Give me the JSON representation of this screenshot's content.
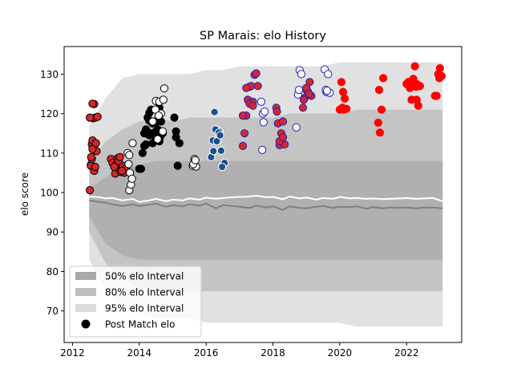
{
  "chart_data": {
    "type": "scatter",
    "title": "SP Marais: elo History",
    "xlabel": "",
    "ylabel": "elo score",
    "xlim": [
      2011.75,
      2023.65
    ],
    "ylim": [
      62,
      137
    ],
    "xticks": [
      {
        "value": 2012,
        "label": "2012"
      },
      {
        "value": 2014,
        "label": "2014"
      },
      {
        "value": 2016,
        "label": "2016"
      },
      {
        "value": 2018,
        "label": "2018"
      },
      {
        "value": 2020,
        "label": "2020"
      },
      {
        "value": 2022,
        "label": "2022"
      }
    ],
    "yticks": [
      {
        "value": 70,
        "label": "70"
      },
      {
        "value": 80,
        "label": "80"
      },
      {
        "value": 90,
        "label": "90"
      },
      {
        "value": 100,
        "label": "100"
      },
      {
        "value": 110,
        "label": "110"
      },
      {
        "value": 120,
        "label": "120"
      },
      {
        "value": 130,
        "label": "130"
      }
    ],
    "grid": false,
    "legend_position": "lower-left",
    "legend": [
      {
        "label": "50% elo Interval",
        "kind": "band",
        "color": "#a9a9a9"
      },
      {
        "label": "80% elo Interval",
        "kind": "band",
        "color": "#bebebe"
      },
      {
        "label": "95% elo Interval",
        "kind": "band",
        "color": "#dcdcdc"
      },
      {
        "label": "Post Match elo",
        "kind": "marker",
        "color": "#000000"
      }
    ],
    "bands": {
      "x": [
        2012.5,
        2013.0,
        2013.5,
        2014.0,
        2014.5,
        2015.0,
        2015.5,
        2016.0,
        2016.5,
        2017.0,
        2017.5,
        2018.0,
        2018.5,
        2019.0,
        2019.5,
        2020.0,
        2020.5,
        2021.0,
        2021.5,
        2022.0,
        2022.5,
        2023.08
      ],
      "p95_upper": [
        117,
        124,
        129,
        130,
        130,
        130,
        130,
        131,
        131,
        132,
        132,
        132,
        132,
        132,
        132,
        133,
        133,
        133,
        133,
        133,
        133,
        133
      ],
      "p80_upper": [
        108,
        113,
        116,
        118,
        119,
        118,
        119,
        119,
        119,
        119,
        119,
        119,
        120,
        120,
        120,
        120,
        121,
        121,
        121,
        121,
        121,
        121
      ],
      "p50_upper": [
        101,
        104,
        106,
        107,
        108,
        108,
        108,
        108,
        108,
        108,
        108,
        108,
        108,
        108,
        108,
        108,
        108,
        108,
        108,
        108,
        108,
        108
      ],
      "median": [
        98,
        97,
        97,
        97,
        97,
        97,
        97,
        97,
        97,
        97,
        97,
        96,
        97,
        97,
        97,
        97,
        97,
        97,
        97,
        97,
        97,
        97
      ],
      "p50_lower": [
        94,
        87,
        84,
        83,
        83,
        83,
        83,
        83,
        83,
        83,
        83,
        83,
        83,
        83,
        83,
        83,
        83,
        83,
        83,
        83,
        83,
        83
      ],
      "p80_lower": [
        90,
        82,
        78,
        76,
        76,
        75,
        75,
        75,
        75,
        75,
        75,
        75,
        75,
        75,
        75,
        75,
        75,
        75,
        75,
        75,
        75,
        75
      ],
      "p95_lower": [
        83,
        75,
        71,
        69,
        68,
        68,
        68,
        67,
        67,
        67,
        67,
        67,
        67,
        67,
        67,
        67,
        66,
        66,
        66,
        66,
        66,
        66
      ]
    },
    "trend": {
      "x": [
        2012.5,
        2012.8,
        2013.0,
        2013.2,
        2013.5,
        2013.8,
        2014.0,
        2014.3,
        2014.5,
        2014.8,
        2015.0,
        2015.3,
        2015.5,
        2015.8,
        2016.0,
        2016.3,
        2016.5,
        2016.8,
        2017.0,
        2017.3,
        2017.5,
        2017.8,
        2018.0,
        2018.3,
        2018.5,
        2018.8,
        2019.0,
        2019.3,
        2019.5,
        2019.8,
        2020.0,
        2020.3,
        2020.5,
        2020.8,
        2021.0,
        2021.3,
        2021.5,
        2021.8,
        2022.0,
        2022.3,
        2022.5,
        2022.8,
        2023.08
      ],
      "white_line": [
        99.0,
        98.8,
        98.5,
        98.6,
        98.0,
        98.4,
        97.6,
        98.0,
        98.4,
        97.8,
        98.2,
        98.0,
        98.5,
        98.2,
        98.7,
        98.4,
        98.6,
        98.8,
        98.9,
        99.0,
        99.2,
        98.8,
        98.9,
        98.3,
        99.0,
        98.5,
        98.7,
        98.2,
        98.6,
        98.4,
        98.9,
        98.5,
        98.6,
        98.4,
        98.5,
        98.3,
        98.4,
        98.5,
        98.6,
        98.4,
        98.5,
        98.6,
        97.8
      ],
      "gray_line": [
        98.0,
        97.6,
        97.4,
        97.0,
        96.6,
        97.0,
        96.6,
        96.9,
        97.2,
        96.4,
        96.8,
        96.5,
        97.0,
        96.7,
        97.2,
        96.0,
        96.8,
        96.6,
        96.4,
        96.1,
        96.7,
        96.2,
        96.5,
        95.6,
        96.5,
        96.1,
        96.0,
        96.4,
        96.6,
        96.1,
        96.4,
        96.3,
        96.5,
        95.9,
        96.3,
        96.0,
        96.2,
        96.1,
        96.2,
        96.0,
        96.2,
        96.2,
        96.0
      ]
    },
    "series": [
      {
        "fill": "#d62728",
        "edge": "#000000",
        "x": [
          2012.52,
          2012.55,
          2012.58,
          2012.6,
          2012.62,
          2012.65,
          2012.68,
          2012.72,
          2012.55,
          2012.6,
          2012.52,
          2012.58,
          2012.7,
          2012.75,
          2012.56,
          2012.65,
          2012.6,
          2012.68,
          2013.15,
          2013.2,
          2013.28,
          2013.35,
          2013.4,
          2013.45,
          2013.5,
          2013.55,
          2013.6,
          2013.3,
          2013.38,
          2013.48,
          2013.42,
          2013.25
        ],
        "y": [
          100.6,
          107.0,
          112.2,
          113.2,
          118.8,
          122.4,
          119.0,
          110.5,
          106.8,
          111.0,
          119.0,
          108.5,
          112.5,
          119.2,
          109.0,
          105.5,
          122.5,
          106.5,
          108.5,
          107.5,
          104.8,
          108.7,
          106.0,
          105.2,
          106.8,
          105.0,
          106.2,
          107.0,
          108.0,
          105.5,
          109.0,
          106.5
        ]
      },
      {
        "fill": "#000000",
        "edge": "#000000",
        "x": [
          2014.05,
          2014.1,
          2014.15,
          2014.2,
          2014.25,
          2014.3,
          2014.35,
          2014.4,
          2014.45,
          2014.5,
          2014.55,
          2014.6,
          2014.65,
          2014.2,
          2014.3,
          2014.4,
          2014.5,
          2014.15,
          2014.25,
          2014.35,
          2014.45,
          2014.55,
          2014.62,
          2014.7,
          2014.0,
          2014.3,
          2014.6,
          2015.05,
          2015.1,
          2015.15,
          2015.2,
          2015.1
        ],
        "y": [
          106.0,
          110.0,
          115.0,
          112.2,
          119.0,
          120.2,
          115.0,
          112.5,
          118.0,
          115.5,
          116.0,
          113.0,
          118.0,
          116.0,
          114.5,
          117.5,
          113.5,
          111.8,
          114.8,
          121.0,
          115.0,
          118.0,
          114.0,
          115.0,
          106.0,
          118.2,
          121.5,
          119.0,
          114.0,
          106.8,
          112.5,
          115.5
        ]
      },
      {
        "fill": "#ffffff",
        "edge": "#000000",
        "x": [
          2013.65,
          2013.7,
          2013.75,
          2013.8,
          2013.68,
          2013.72,
          2013.78,
          2013.7,
          2014.4,
          2014.5,
          2014.6,
          2014.7,
          2014.75,
          2014.65,
          2014.55,
          2014.48,
          2014.72,
          2014.58,
          2015.6,
          2015.65,
          2015.7,
          2015.62,
          2015.68
        ],
        "y": [
          110.0,
          100.6,
          102.0,
          112.5,
          107.2,
          105.0,
          103.5,
          109.5,
          118.0,
          123.2,
          123.0,
          115.5,
          126.4,
          120.0,
          113.5,
          121.0,
          123.5,
          119.5,
          106.8,
          108.5,
          106.6,
          107.2,
          108.2
        ]
      },
      {
        "fill": "#1f4e8c",
        "edge": "#ffffff",
        "x": [
          2016.15,
          2016.2,
          2016.25,
          2016.3,
          2016.35,
          2016.4,
          2016.45,
          2016.5,
          2016.55,
          2016.28,
          2016.38,
          2016.22,
          2016.48,
          2016.32,
          2016.42
        ],
        "y": [
          109.0,
          113.2,
          120.4,
          116.0,
          113.2,
          115.5,
          110.6,
          106.8,
          107.5,
          116.0,
          115.2,
          110.5,
          106.5,
          113.0,
          114.5
        ]
      },
      {
        "fill": "#d62728",
        "edge": "#2020c0",
        "x": [
          2017.1,
          2017.15,
          2017.2,
          2017.25,
          2017.3,
          2017.35,
          2017.4,
          2017.45,
          2017.5,
          2017.55,
          2017.2,
          2017.3,
          2017.1,
          2017.4,
          2018.1,
          2018.15,
          2018.2,
          2018.25,
          2018.3,
          2018.35,
          2018.2,
          2018.3,
          2018.12,
          2018.9,
          2018.95,
          2019.0,
          2019.05,
          2019.1,
          2019.15,
          2018.92,
          2019.0,
          2019.08
        ],
        "y": [
          111.8,
          115.0,
          119.5,
          123.5,
          126.8,
          127.0,
          123.0,
          129.8,
          130.2,
          127.0,
          126.5,
          122.5,
          119.5,
          122.0,
          121.5,
          117.5,
          112.0,
          115.0,
          118.0,
          112.2,
          113.0,
          114.0,
          120.5,
          121.5,
          124.0,
          126.0,
          125.5,
          128.0,
          124.5,
          123.5,
          126.5,
          125.0
        ]
      },
      {
        "fill": "#ffffff",
        "edge": "#2020c0",
        "x": [
          2017.65,
          2017.7,
          2017.72,
          2017.75,
          2017.68,
          2018.75,
          2018.8,
          2018.85,
          2018.78,
          2018.7,
          2019.55,
          2019.6,
          2019.65,
          2019.7,
          2019.58,
          2019.62
        ],
        "y": [
          123.0,
          120.0,
          117.8,
          120.5,
          110.8,
          124.8,
          131.0,
          130.0,
          126.0,
          116.5,
          131.2,
          125.5,
          130.0,
          125.3,
          126.0,
          125.8
        ]
      },
      {
        "fill": "#ff0000",
        "edge": "#ff0000",
        "x": [
          2020.05,
          2020.1,
          2020.15,
          2020.2,
          2020.08,
          2020.12,
          2020.0,
          2021.15,
          2021.2,
          2021.25,
          2021.3,
          2021.18,
          2022.0,
          2022.05,
          2022.1,
          2022.15,
          2022.2,
          2022.25,
          2022.3,
          2022.35,
          2022.4,
          2022.2,
          2022.3,
          2022.12,
          2022.28,
          2022.18,
          2022.38,
          2022.85,
          2022.9,
          2022.95,
          2023.0,
          2023.05,
          2022.98
        ],
        "y": [
          128.0,
          125.5,
          123.8,
          121.2,
          121.5,
          121.0,
          121.0,
          117.7,
          115.2,
          121.0,
          129.0,
          126.0,
          127.5,
          128.0,
          126.5,
          123.5,
          127.0,
          132.0,
          127.5,
          122.0,
          127.0,
          128.8,
          123.5,
          127.3,
          126.8,
          128.5,
          127.0,
          124.5,
          124.5,
          130.0,
          131.5,
          129.5,
          129.0
        ]
      }
    ]
  }
}
